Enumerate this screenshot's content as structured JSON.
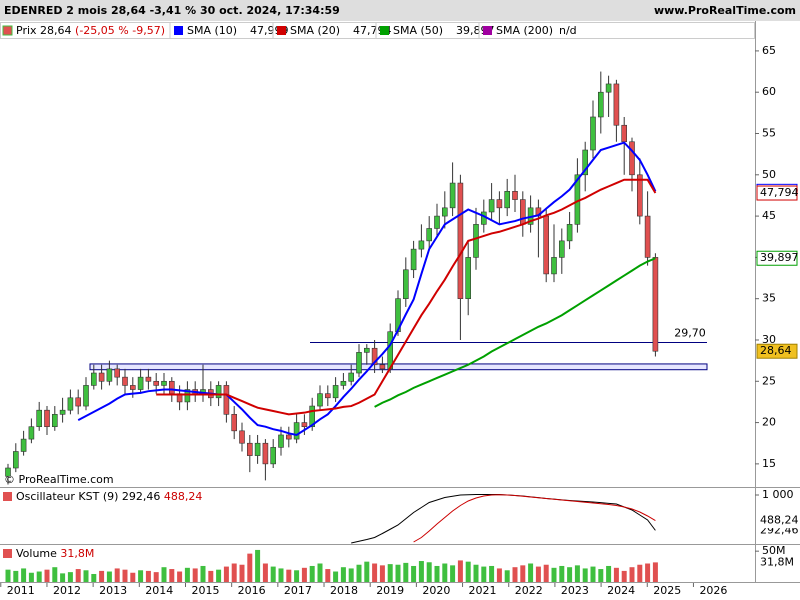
{
  "header": {
    "title": "EDENRED 2 mois 28,64 -3,41 % 30 oct. 2024, 17:34:59",
    "site": "www.ProRealTime.com"
  },
  "watermark": "ProRealTime.com",
  "chart_data": [
    {
      "type": "candlestick",
      "legend_label": "Prix",
      "legend_change": "(-25,05 % -9,57)",
      "last_label": "28,64",
      "color_up": "#3fbf3f",
      "color_down": "#e05050",
      "open": [
        13.5,
        14.5,
        16.5,
        18,
        19.5,
        21.5,
        19.5,
        21,
        21.5,
        23,
        22,
        24.5,
        26,
        25,
        26.5,
        25.5,
        24.5,
        24,
        25.5,
        25,
        24.5,
        25,
        23.5,
        22.5,
        24,
        23.5,
        24,
        23,
        24.5,
        21,
        19,
        17.5,
        16,
        17.5,
        15,
        17,
        18.5,
        18,
        20,
        19.5,
        22,
        23.5,
        23,
        24.5,
        25,
        26,
        28.5,
        29,
        27,
        26.5,
        31,
        35,
        38.5,
        41,
        42,
        43.5,
        45,
        46,
        49,
        35,
        40,
        44,
        45.5,
        47,
        46,
        48,
        47,
        44,
        46,
        45,
        38,
        40,
        42,
        44,
        50,
        53,
        57,
        60,
        61,
        56,
        54,
        50,
        45,
        40
      ],
      "high": [
        15,
        17.5,
        19,
        20.5,
        22.5,
        22,
        22,
        23,
        24,
        24,
        25.5,
        27,
        27,
        27.5,
        27,
        26.5,
        25.5,
        26.5,
        26.5,
        26,
        26,
        25.5,
        24.5,
        25,
        25,
        27,
        25,
        25,
        25,
        22,
        20,
        18.5,
        18.5,
        18,
        18,
        19.5,
        19.5,
        21,
        21,
        23,
        24.5,
        24.5,
        25.5,
        26,
        27,
        29.5,
        29.5,
        30,
        28,
        32,
        36,
        40,
        42,
        44,
        45,
        46.5,
        48,
        51.5,
        50,
        42,
        46,
        47,
        49,
        48,
        49.5,
        50,
        48,
        47.5,
        47,
        46,
        44,
        43.5,
        45.5,
        52,
        54,
        59,
        62.5,
        62,
        61.5,
        57,
        54.5,
        52,
        48,
        40.5
      ],
      "low": [
        12.5,
        14,
        16,
        17.5,
        19,
        18.5,
        19,
        20,
        21,
        21,
        21.5,
        24,
        24,
        24.5,
        24.5,
        23.5,
        23,
        23.5,
        24,
        23.5,
        23.5,
        22.5,
        21.5,
        21.5,
        22.5,
        22.5,
        22,
        22,
        20,
        18,
        16.5,
        14,
        15,
        13,
        14.5,
        16,
        17,
        17.5,
        18.5,
        19,
        21.5,
        22,
        22.5,
        24,
        24.5,
        25.5,
        27,
        26,
        26,
        26,
        30.5,
        34,
        37.5,
        40,
        41,
        42.5,
        43.5,
        45,
        30,
        33,
        38.5,
        43,
        44.5,
        44,
        45,
        45.5,
        42.5,
        43,
        40,
        37,
        37,
        38,
        41,
        43,
        48,
        52,
        55,
        57,
        54,
        50,
        48,
        44,
        39,
        28
      ],
      "close": [
        14.5,
        16.5,
        18,
        19.5,
        21.5,
        19.5,
        21,
        21.5,
        23,
        22,
        24.5,
        26,
        25,
        26.5,
        25.5,
        24.5,
        24,
        25.5,
        25,
        24.5,
        25,
        23.5,
        22.5,
        24,
        23.5,
        24,
        23,
        24.5,
        21,
        19,
        17.5,
        16,
        17.5,
        15,
        17,
        18.5,
        18,
        20,
        19.5,
        22,
        23.5,
        23,
        24.5,
        25,
        26,
        28.5,
        29,
        27,
        26.5,
        31,
        35,
        38.5,
        41,
        42,
        43.5,
        45,
        46,
        49,
        35,
        40,
        44,
        45.5,
        47,
        46,
        48,
        47,
        44,
        46,
        45,
        38,
        40,
        42,
        44,
        50,
        53,
        57,
        60,
        61,
        56,
        54,
        50,
        45,
        40,
        28.64
      ],
      "series": [
        {
          "name": "SMA (10)",
          "color": "#0000ff",
          "last_label": "47,999",
          "values": [
            null,
            null,
            null,
            null,
            null,
            null,
            null,
            null,
            null,
            20.3,
            20.8,
            21.3,
            21.8,
            22.3,
            22.9,
            23.4,
            23.5,
            23.6,
            23.8,
            23.9,
            24,
            24,
            23.9,
            23.8,
            23.7,
            23.6,
            23.5,
            23.4,
            23.4,
            22.5,
            21.6,
            20.6,
            19.7,
            19.5,
            19.2,
            19,
            18.7,
            18.5,
            19.1,
            19.7,
            20.4,
            21,
            22,
            23.1,
            24.1,
            25.2,
            26.2,
            27.3,
            28.3,
            29.4,
            31.2,
            33.1,
            34.9,
            38,
            41,
            42.5,
            44,
            44.6,
            45.2,
            45.8,
            45.4,
            45,
            44.5,
            44,
            44.2,
            44.4,
            44.7,
            44.9,
            45.1,
            45.9,
            46.7,
            47.4,
            48.2,
            49.4,
            50.6,
            51.8,
            53,
            53.3,
            53.6,
            53.9,
            52.9,
            51.8,
            50,
            47.999
          ]
        },
        {
          "name": "SMA (20)",
          "color": "#d00000",
          "last_label": "47,794",
          "values": [
            null,
            null,
            null,
            null,
            null,
            null,
            null,
            null,
            null,
            null,
            null,
            null,
            null,
            null,
            null,
            null,
            null,
            null,
            null,
            23.4,
            23.4,
            23.4,
            23.4,
            23.4,
            23.4,
            23.4,
            23.4,
            23.4,
            23.4,
            23,
            22.6,
            22.2,
            21.8,
            21.6,
            21.4,
            21.2,
            21,
            21.1,
            21.2,
            21.4,
            21.5,
            21.6,
            21.7,
            21.9,
            22,
            22.4,
            22.9,
            23.4,
            25,
            26.6,
            28.2,
            29.8,
            31.4,
            33,
            34.4,
            35.9,
            37.3,
            38.9,
            40.4,
            42,
            42.3,
            42.6,
            42.9,
            43.1,
            43.4,
            43.7,
            44,
            44.4,
            44.7,
            45.1,
            45.4,
            45.8,
            46.3,
            46.8,
            47.2,
            47.7,
            48.2,
            48.6,
            49,
            49.4,
            49.4,
            49.4,
            49.4,
            47.794
          ]
        },
        {
          "name": "SMA (50)",
          "color": "#00a000",
          "last_label": "39,897",
          "values": [
            null,
            null,
            null,
            null,
            null,
            null,
            null,
            null,
            null,
            null,
            null,
            null,
            null,
            null,
            null,
            null,
            null,
            null,
            null,
            null,
            null,
            null,
            null,
            null,
            null,
            null,
            null,
            null,
            null,
            null,
            null,
            null,
            null,
            null,
            null,
            null,
            null,
            null,
            null,
            null,
            null,
            null,
            null,
            null,
            null,
            null,
            null,
            21.9,
            22.4,
            22.8,
            23.3,
            23.7,
            24.2,
            24.6,
            25,
            25.4,
            25.8,
            26.2,
            26.6,
            27,
            27.5,
            28,
            28.6,
            29.1,
            29.6,
            30.1,
            30.6,
            31.1,
            31.6,
            32,
            32.5,
            33,
            33.6,
            34.2,
            34.8,
            35.4,
            36,
            36.6,
            37.2,
            37.8,
            38.4,
            39,
            39.5,
            39.897
          ]
        },
        {
          "name": "SMA (200)",
          "color": "#a000a0",
          "last_label": "n/d",
          "values": []
        }
      ],
      "ylim": [
        12.2,
        68.5
      ],
      "yticks": [
        15,
        20,
        25,
        30,
        35,
        40,
        45,
        50,
        55,
        60,
        65
      ],
      "xlim": [
        2010.55,
        2026.9
      ],
      "xticks": [
        2011,
        2012,
        2013,
        2014,
        2015,
        2016,
        2017,
        2018,
        2019,
        2020,
        2021,
        2022,
        2023,
        2024,
        2025,
        2026
      ],
      "hline": {
        "value": 29.7,
        "label": "29,70"
      },
      "zone": [
        26.4,
        27.1
      ]
    },
    {
      "type": "line",
      "title": "Oscillateur KST (9)",
      "ylim": [
        40,
        1140
      ],
      "yticks": [
        {
          "value": 1000,
          "label": "1 000"
        }
      ],
      "series": [
        {
          "color": "#000000",
          "last_label": "292,46",
          "values": [
            null,
            null,
            null,
            null,
            null,
            null,
            null,
            null,
            null,
            null,
            null,
            null,
            null,
            null,
            null,
            null,
            null,
            null,
            null,
            null,
            null,
            null,
            null,
            null,
            null,
            null,
            null,
            null,
            null,
            null,
            null,
            null,
            null,
            null,
            null,
            null,
            null,
            null,
            null,
            null,
            null,
            null,
            null,
            null,
            40,
            75,
            110,
            150,
            230,
            315,
            400,
            525,
            650,
            750,
            850,
            900,
            950,
            975,
            1000,
            1005,
            1010,
            1010,
            1010,
            1010,
            1000,
            990,
            980,
            963,
            947,
            930,
            917,
            903,
            890,
            880,
            870,
            860,
            847,
            833,
            820,
            760,
            700,
            600,
            500,
            292.46
          ]
        },
        {
          "color": "#cc0000",
          "last_label": "488,24",
          "values": [
            null,
            null,
            null,
            null,
            null,
            null,
            null,
            null,
            null,
            null,
            null,
            null,
            null,
            null,
            null,
            null,
            null,
            null,
            null,
            null,
            null,
            null,
            null,
            null,
            null,
            null,
            null,
            null,
            null,
            null,
            null,
            null,
            null,
            null,
            null,
            null,
            null,
            null,
            null,
            null,
            null,
            null,
            null,
            null,
            null,
            null,
            null,
            null,
            null,
            null,
            null,
            null,
            60,
            150,
            280,
            420,
            550,
            680,
            790,
            880,
            940,
            980,
            1000,
            1005,
            1000,
            990,
            975,
            960,
            945,
            930,
            915,
            900,
            885,
            870,
            855,
            840,
            825,
            810,
            790,
            760,
            720,
            660,
            580,
            488.24
          ]
        }
      ]
    },
    {
      "type": "bar",
      "title": "Volume",
      "last_label": "31,8M",
      "ylim": [
        0,
        60
      ],
      "yticks": [
        {
          "value": 50,
          "label": "50M"
        }
      ],
      "values": [
        20,
        18,
        22,
        15,
        17,
        20,
        24,
        14,
        16,
        21,
        19,
        13,
        18,
        17,
        22,
        20,
        15,
        19,
        18,
        16,
        24,
        21,
        17,
        23,
        22,
        26,
        18,
        20,
        25,
        30,
        28,
        46,
        52,
        30,
        25,
        22,
        20,
        19,
        23,
        26,
        30,
        21,
        17,
        24,
        22,
        28,
        33,
        30,
        27,
        29,
        28,
        31,
        26,
        34,
        32,
        26,
        30,
        27,
        35,
        33,
        28,
        25,
        26,
        22,
        19,
        24,
        27,
        30,
        25,
        28,
        23,
        26,
        24,
        27,
        22,
        25,
        21,
        26,
        23,
        18,
        24,
        28,
        30,
        31.8
      ]
    }
  ]
}
